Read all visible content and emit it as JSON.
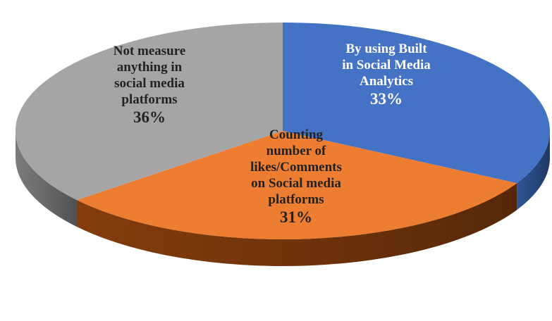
{
  "chart_data": {
    "type": "pie",
    "title": "",
    "style": "3d",
    "slices": [
      {
        "name": "By using Built in Social Media Analytics",
        "label_lines": [
          "By using Built",
          "in Social Media",
          "Analytics"
        ],
        "value": 33,
        "value_label": "33%",
        "color": "#4472c4",
        "side_color": "#2f5597",
        "label_color": "light"
      },
      {
        "name": "Counting number of likes/Comments on Social media platforms",
        "label_lines": [
          "Counting",
          "number of",
          "likes/Comments",
          "on Social media",
          "platforms"
        ],
        "value": 31,
        "value_label": "31%",
        "color": "#ed7d31",
        "side_color": "#843c0c",
        "label_color": "dark"
      },
      {
        "name": "Not measure anything in social media platforms",
        "label_lines": [
          "Not measure",
          "anything in",
          "social media",
          "platforms"
        ],
        "value": 36,
        "value_label": "36%",
        "color": "#a5a5a5",
        "side_color": "#7b7b7b",
        "label_color": "dark"
      }
    ]
  }
}
